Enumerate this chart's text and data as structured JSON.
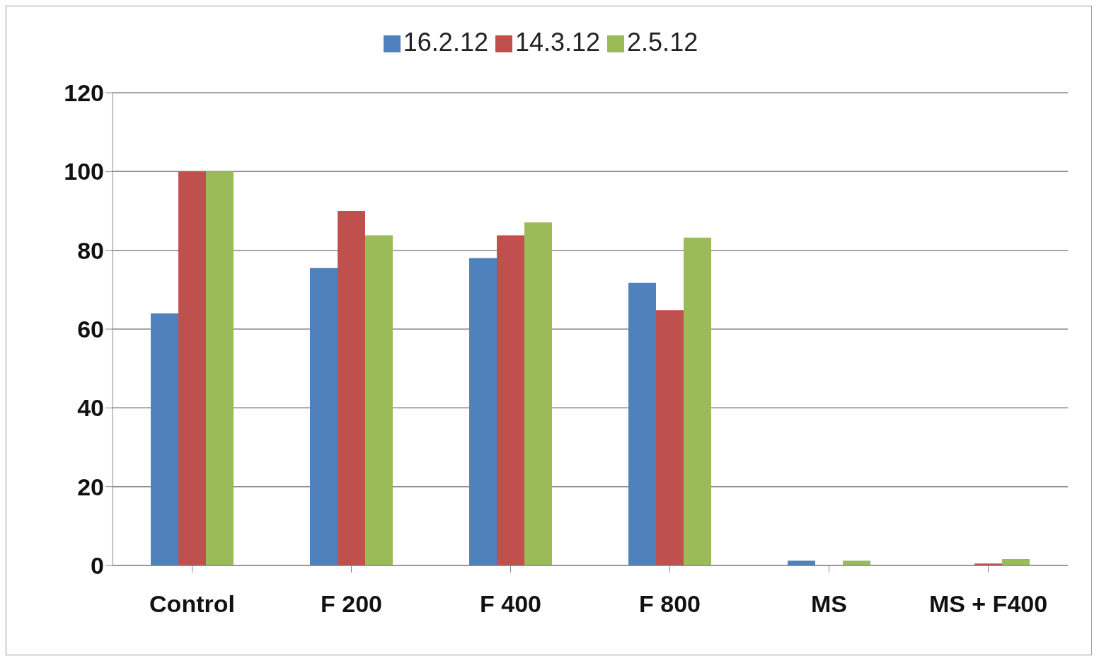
{
  "chart_data": {
    "type": "bar",
    "categories": [
      "Control",
      "F 200",
      "F 400",
      "F 800",
      "MS",
      "MS + F400"
    ],
    "series": [
      {
        "name": "16.2.12",
        "color": "#4f81bd",
        "values": [
          64,
          75.5,
          78,
          71.7,
          1.2,
          0
        ]
      },
      {
        "name": "14.3.12",
        "color": "#c0504d",
        "values": [
          100,
          90,
          83.8,
          64.8,
          0,
          0.5
        ]
      },
      {
        "name": "2.5.12",
        "color": "#9bbb59",
        "values": [
          100,
          83.8,
          87.1,
          83.2,
          1.2,
          1.6
        ]
      }
    ],
    "ylim": [
      0,
      120
    ],
    "yticks": [
      0,
      20,
      40,
      60,
      80,
      100,
      120
    ],
    "grid": "y",
    "legend": "top"
  }
}
